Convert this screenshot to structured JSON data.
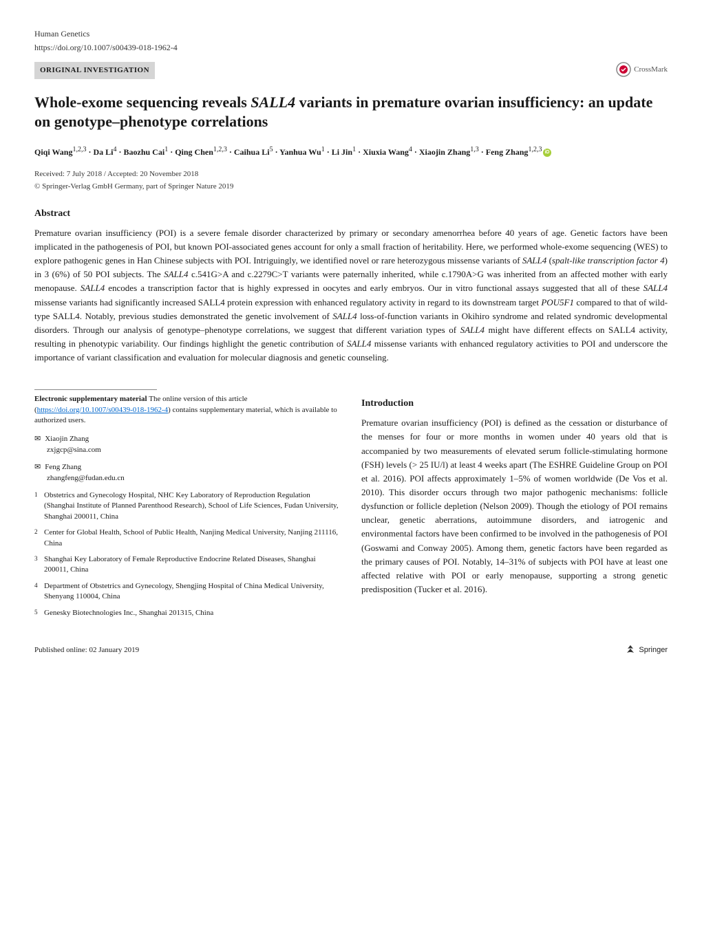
{
  "header": {
    "journal": "Human Genetics",
    "doi_url": "https://doi.org/10.1007/s00439-018-1962-4",
    "category": "ORIGINAL INVESTIGATION",
    "crossmark": "CrossMark"
  },
  "title": "Whole-exome sequencing reveals SALL4 variants in premature ovarian insufficiency: an update on genotype–phenotype correlations",
  "authors_line": "Qiqi Wang1,2,3 · Da Li4 · Baozhu Cai1 · Qing Chen1,2,3 · Caihua Li5 · Yanhua Wu1 · Li Jin1 · Xiuxia Wang4 · Xiaojin Zhang1,3 · Feng Zhang1,2,3",
  "authors": [
    {
      "name": "Qiqi Wang",
      "sup": "1,2,3"
    },
    {
      "name": "Da Li",
      "sup": "4"
    },
    {
      "name": "Baozhu Cai",
      "sup": "1"
    },
    {
      "name": "Qing Chen",
      "sup": "1,2,3"
    },
    {
      "name": "Caihua Li",
      "sup": "5"
    },
    {
      "name": "Yanhua Wu",
      "sup": "1"
    },
    {
      "name": "Li Jin",
      "sup": "1"
    },
    {
      "name": "Xiuxia Wang",
      "sup": "4"
    },
    {
      "name": "Xiaojin Zhang",
      "sup": "1,3"
    },
    {
      "name": "Feng Zhang",
      "sup": "1,2,3",
      "orcid": true
    }
  ],
  "dates": "Received: 7 July 2018 / Accepted: 20 November 2018",
  "copyright": "© Springer-Verlag GmbH Germany, part of Springer Nature 2019",
  "abstract_heading": "Abstract",
  "abstract": "Premature ovarian insufficiency (POI) is a severe female disorder characterized by primary or secondary amenorrhea before 40 years of age. Genetic factors have been implicated in the pathogenesis of POI, but known POI-associated genes account for only a small fraction of heritability. Here, we performed whole-exome sequencing (WES) to explore pathogenic genes in Han Chinese subjects with POI. Intriguingly, we identified novel or rare heterozygous missense variants of SALL4 (spalt-like transcription factor 4) in 3 (6%) of 50 POI subjects. The SALL4 c.541G>A and c.2279C>T variants were paternally inherited, while c.1790A>G was inherited from an affected mother with early menopause. SALL4 encodes a transcription factor that is highly expressed in oocytes and early embryos. Our in vitro functional assays suggested that all of these SALL4 missense variants had significantly increased SALL4 protein expression with enhanced regulatory activity in regard to its downstream target POU5F1 compared to that of wild-type SALL4. Notably, previous studies demonstrated the genetic involvement of SALL4 loss-of-function variants in Okihiro syndrome and related syndromic developmental disorders. Through our analysis of genotype–phenotype correlations, we suggest that different variation types of SALL4 might have different effects on SALL4 activity, resulting in phenotypic variability. Our findings highlight the genetic contribution of SALL4 missense variants with enhanced regulatory activities to POI and underscore the importance of variant classification and evaluation for molecular diagnosis and genetic counseling.",
  "supplementary": {
    "label": "Electronic supplementary material",
    "text1": "The online version of this article (",
    "link": "https://doi.org/10.1007/s00439-018-1962-4",
    "text2": ") contains supplementary material, which is available to authorized users."
  },
  "corresponding": [
    {
      "name": "Xiaojin Zhang",
      "email": "zxjgcp@sina.com"
    },
    {
      "name": "Feng Zhang",
      "email": "zhangfeng@fudan.edu.cn"
    }
  ],
  "affiliations": [
    {
      "num": "1",
      "text": "Obstetrics and Gynecology Hospital, NHC Key Laboratory of Reproduction Regulation (Shanghai Institute of Planned Parenthood Research), School of Life Sciences, Fudan University, Shanghai 200011, China"
    },
    {
      "num": "2",
      "text": "Center for Global Health, School of Public Health, Nanjing Medical University, Nanjing 211116, China"
    },
    {
      "num": "3",
      "text": "Shanghai Key Laboratory of Female Reproductive Endocrine Related Diseases, Shanghai 200011, China"
    },
    {
      "num": "4",
      "text": "Department of Obstetrics and Gynecology, Shengjing Hospital of China Medical University, Shenyang 110004, China"
    },
    {
      "num": "5",
      "text": "Genesky Biotechnologies Inc., Shanghai 201315, China"
    }
  ],
  "introduction_heading": "Introduction",
  "introduction": "Premature ovarian insufficiency (POI) is defined as the cessation or disturbance of the menses for four or more months in women under 40 years old that is accompanied by two measurements of elevated serum follicle-stimulating hormone (FSH) levels (> 25 IU/l) at least 4 weeks apart (The ESHRE Guideline Group on POI et al. 2016). POI affects approximately 1–5% of women worldwide (De Vos et al. 2010). This disorder occurs through two major pathogenic mechanisms: follicle dysfunction or follicle depletion (Nelson 2009). Though the etiology of POI remains unclear, genetic aberrations, autoimmune disorders, and iatrogenic and environmental factors have been confirmed to be involved in the pathogenesis of POI (Goswami and Conway 2005). Among them, genetic factors have been regarded as the primary causes of POI. Notably, 14–31% of subjects with POI have at least one affected relative with POI or early menopause, supporting a strong genetic predisposition (Tucker et al. 2016).",
  "footer": {
    "published": "Published online: 02 January 2019",
    "publisher": "Springer"
  }
}
